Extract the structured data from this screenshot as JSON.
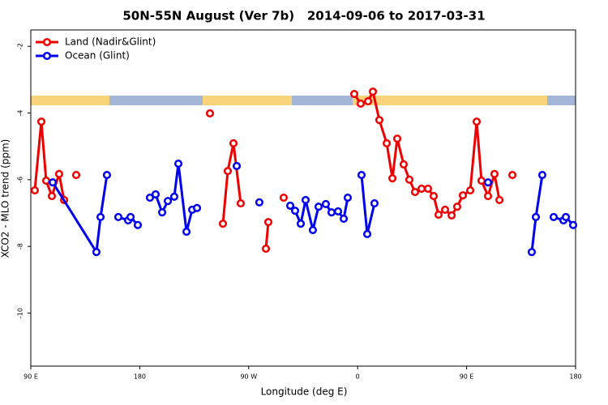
{
  "chart_data": {
    "type": "line",
    "title": "50N-55N August (Ver 7b)   2014-09-06 to 2017-03-31",
    "x_label": "Longitude (deg E)",
    "y_label": "XCO2 - MLO trend (ppm)",
    "xlim": [
      90,
      540
    ],
    "ylim": [
      -11.59,
      -1.51
    ],
    "xticks": [
      {
        "value": 90,
        "label": "90 E"
      },
      180,
      {
        "value": 270,
        "label": "90 W"
      },
      {
        "value": 360,
        "label": "0"
      },
      {
        "value": 450,
        "label": "90 E"
      },
      {
        "value": 540,
        "label": "180"
      }
    ],
    "yticks": [
      -2,
      -4,
      -6,
      -8,
      -10
    ],
    "legend": "top-left",
    "series": [
      {
        "name": "Land (Nadir&Glint)",
        "color": "#ee0000",
        "x": [
          93.3,
          98.7,
          102.7,
          107.4,
          113.4,
          117.5,
          null,
          127.5,
          null,
          238,
          null,
          248.7,
          252.7,
          257.4,
          263.4,
          null,
          284.2,
          286.2,
          null,
          298.9,
          null,
          357.2,
          362.5,
          368.6,
          372.6,
          377.9,
          384,
          388.7,
          392.7,
          398,
          402.7,
          407.4,
          412.8,
          418.1,
          422.8,
          426.8,
          432.2,
          437.6,
          442.2,
          446.9,
          453,
          458.3,
          462.3,
          467.7,
          473,
          477.1,
          null,
          487.8
        ],
        "values": [
          -6.32,
          -4.26,
          -6.03,
          -6.49,
          -5.83,
          -6.61,
          null,
          -5.86,
          null,
          -4.01,
          null,
          -7.32,
          -5.74,
          -4.91,
          -6.71,
          null,
          -8.07,
          -7.27,
          null,
          -6.54,
          null,
          -3.43,
          -3.72,
          -3.65,
          -3.36,
          -4.21,
          -4.91,
          -5.96,
          -4.77,
          -5.54,
          -6.0,
          -6.37,
          -6.27,
          -6.27,
          -6.49,
          -7.05,
          -6.9,
          -7.07,
          -6.81,
          -6.47,
          -6.32,
          -4.26,
          -6.03,
          -6.49,
          -5.83,
          -6.61,
          null,
          -5.86
        ]
      },
      {
        "name": "Ocean (Glint)",
        "color": "#0000ee",
        "x": [
          108.1,
          144.2,
          147.6,
          152.9,
          null,
          162.3,
          170.4,
          172.4,
          178.4,
          null,
          188.4,
          193.1,
          198.5,
          203.2,
          208.5,
          211.9,
          218.6,
          223.3,
          227.3,
          null,
          260.1,
          null,
          278.8,
          null,
          304.3,
          308.3,
          313,
          317,
          323,
          327.7,
          333.7,
          338.4,
          343.8,
          348.5,
          351.8,
          null,
          363.2,
          367.9,
          373.9,
          null,
          467.7,
          null,
          503.8,
          507.2,
          512.5,
          null,
          521.9,
          530,
          532,
          538
        ],
        "values": [
          -6.08,
          -8.17,
          -7.12,
          -5.86,
          null,
          -7.12,
          -7.22,
          -7.12,
          -7.36,
          null,
          -6.54,
          -6.44,
          -6.98,
          -6.64,
          -6.51,
          -5.52,
          -7.56,
          -6.9,
          -6.85,
          null,
          -5.59,
          null,
          -6.68,
          null,
          -6.78,
          -6.93,
          -7.32,
          -6.61,
          -7.51,
          -6.81,
          -6.73,
          -6.98,
          -6.95,
          -7.17,
          -6.54,
          null,
          -5.86,
          -7.63,
          -6.71,
          null,
          -6.08,
          null,
          -8.17,
          -7.12,
          -5.86,
          null,
          -7.12,
          -7.22,
          -7.12,
          -7.36
        ]
      }
    ]
  }
}
